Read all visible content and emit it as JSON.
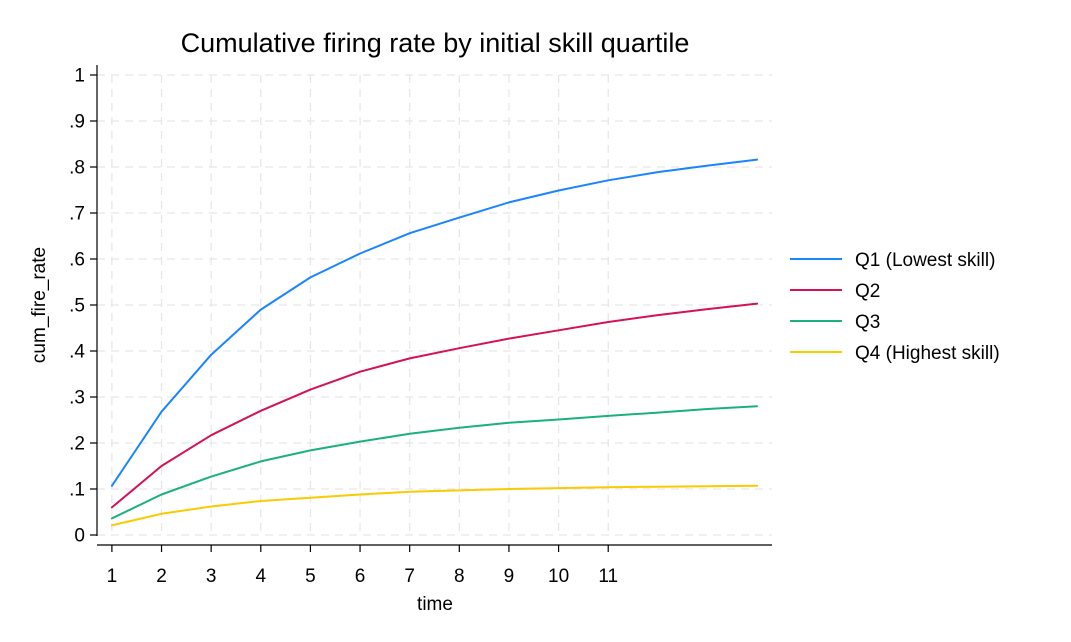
{
  "chart_data": {
    "type": "line",
    "title": "Cumulative firing rate by initial skill quartile",
    "xlabel": "time",
    "ylabel": "cum_fire_rate",
    "x": [
      1,
      2,
      3,
      4,
      5,
      6,
      7,
      8,
      9,
      10,
      11,
      12,
      13,
      14
    ],
    "x_tick_labels": [
      "1",
      "2",
      "3",
      "4",
      "5",
      "6",
      "7",
      "8",
      "9",
      "10",
      "11"
    ],
    "y_tick_labels": [
      "0",
      ".1",
      ".2",
      ".3",
      ".4",
      ".5",
      ".6",
      ".7",
      ".8",
      ".9",
      "1"
    ],
    "xlim": [
      0.7,
      14.3
    ],
    "ylim": [
      0,
      1
    ],
    "grid": true,
    "legend_position": "right",
    "series": [
      {
        "name": "Q1 (Lowest skill)",
        "color": "#1a85ff",
        "values": [
          0.107,
          0.268,
          0.392,
          0.49,
          0.56,
          0.612,
          0.656,
          0.69,
          0.723,
          0.749,
          0.771,
          0.789,
          0.803,
          0.816
        ]
      },
      {
        "name": "Q2",
        "color": "#d41159",
        "values": [
          0.06,
          0.15,
          0.217,
          0.27,
          0.316,
          0.355,
          0.384,
          0.406,
          0.427,
          0.445,
          0.463,
          0.478,
          0.491,
          0.503
        ]
      },
      {
        "name": "Q3",
        "color": "#1bb07f",
        "values": [
          0.036,
          0.088,
          0.127,
          0.16,
          0.184,
          0.203,
          0.22,
          0.233,
          0.244,
          0.251,
          0.259,
          0.266,
          0.274,
          0.28
        ]
      },
      {
        "name": "Q4 (Highest skill)",
        "color": "#fbcb00",
        "values": [
          0.021,
          0.046,
          0.062,
          0.074,
          0.081,
          0.088,
          0.094,
          0.097,
          0.1,
          0.102,
          0.104,
          0.105,
          0.106,
          0.107
        ]
      }
    ]
  }
}
